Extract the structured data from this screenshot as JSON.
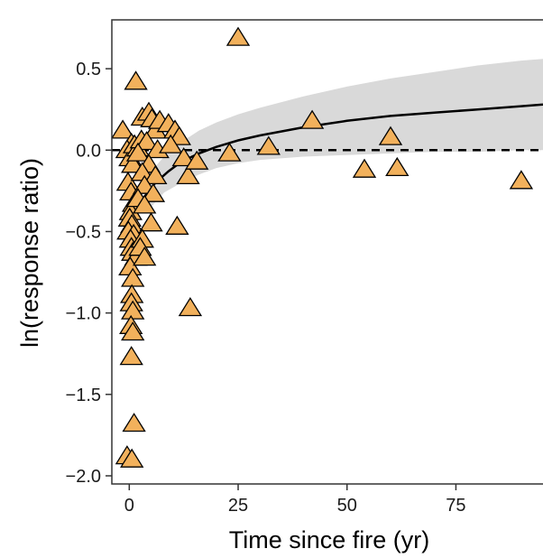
{
  "chart_data": {
    "type": "scatter",
    "title": "",
    "xlabel": "Time since fire (yr)",
    "ylabel": "ln(response ratio)",
    "xlim": [
      -4,
      95
    ],
    "ylim": [
      -2.05,
      0.8
    ],
    "x_ticks": [
      0,
      25,
      50,
      75
    ],
    "x_tick_labels": [
      "0",
      "25",
      "50",
      "75"
    ],
    "y_ticks": [
      0.5,
      0.0,
      -0.5,
      -1.0,
      -1.5,
      -2.0
    ],
    "y_tick_labels": [
      "0.5",
      "0.0",
      "−0.5",
      "−1.0",
      "−1.5",
      "−2.0"
    ],
    "grid": false,
    "reference_line": {
      "y": 0,
      "style": "dashed"
    },
    "series": [
      {
        "type": "scatter",
        "marker": "triangle",
        "points": [
          {
            "x": -1.5,
            "y": 0.12
          },
          {
            "x": 0.5,
            "y": 0.04
          },
          {
            "x": -0.5,
            "y": 0.0
          },
          {
            "x": 0.2,
            "y": -0.05
          },
          {
            "x": 1.2,
            "y": 0.03
          },
          {
            "x": 2.0,
            "y": 0.01
          },
          {
            "x": 0.8,
            "y": -0.09
          },
          {
            "x": -0.3,
            "y": -0.2
          },
          {
            "x": 0.4,
            "y": -0.26
          },
          {
            "x": 1.0,
            "y": -0.33
          },
          {
            "x": 0.3,
            "y": -0.38
          },
          {
            "x": 0.1,
            "y": -0.42
          },
          {
            "x": 0.6,
            "y": -0.46
          },
          {
            "x": -0.2,
            "y": -0.5
          },
          {
            "x": 1.0,
            "y": -0.52
          },
          {
            "x": 0.3,
            "y": -0.55
          },
          {
            "x": 0.5,
            "y": -0.6
          },
          {
            "x": 0.8,
            "y": -0.63
          },
          {
            "x": 1.5,
            "y": -0.66
          },
          {
            "x": 0.2,
            "y": -0.72
          },
          {
            "x": 0.8,
            "y": -0.79
          },
          {
            "x": 0.6,
            "y": -0.89
          },
          {
            "x": 0.5,
            "y": -0.94
          },
          {
            "x": 0.8,
            "y": -0.99
          },
          {
            "x": 0.4,
            "y": -1.08
          },
          {
            "x": 0.8,
            "y": -1.12
          },
          {
            "x": 0.5,
            "y": -1.27
          },
          {
            "x": 1.1,
            "y": -1.68
          },
          {
            "x": -0.5,
            "y": -1.88
          },
          {
            "x": 0.6,
            "y": -1.9
          },
          {
            "x": 1.5,
            "y": 0.42
          },
          {
            "x": 3.0,
            "y": 0.2
          },
          {
            "x": 4.5,
            "y": 0.23
          },
          {
            "x": 5.2,
            "y": 0.19
          },
          {
            "x": 6.0,
            "y": 0.12
          },
          {
            "x": 7.0,
            "y": 0.18
          },
          {
            "x": 9.0,
            "y": 0.16
          },
          {
            "x": 10.5,
            "y": 0.12
          },
          {
            "x": 11.5,
            "y": 0.08
          },
          {
            "x": 2.8,
            "y": 0.06
          },
          {
            "x": 4.0,
            "y": 0.05
          },
          {
            "x": 6.5,
            "y": 0.0
          },
          {
            "x": 9.5,
            "y": 0.03
          },
          {
            "x": 2.0,
            "y": -0.02
          },
          {
            "x": 4.5,
            "y": -0.09
          },
          {
            "x": 3.0,
            "y": -0.14
          },
          {
            "x": 6.0,
            "y": -0.16
          },
          {
            "x": 3.5,
            "y": -0.22
          },
          {
            "x": 5.5,
            "y": -0.27
          },
          {
            "x": 2.0,
            "y": -0.3
          },
          {
            "x": 3.5,
            "y": -0.34
          },
          {
            "x": 5.0,
            "y": -0.45
          },
          {
            "x": 3.0,
            "y": -0.55
          },
          {
            "x": 2.5,
            "y": -0.6
          },
          {
            "x": 3.5,
            "y": -0.66
          },
          {
            "x": 12.5,
            "y": -0.05
          },
          {
            "x": 13.5,
            "y": -0.16
          },
          {
            "x": 15.5,
            "y": -0.07
          },
          {
            "x": 11.0,
            "y": -0.47
          },
          {
            "x": 14.0,
            "y": -0.97
          },
          {
            "x": 23.0,
            "y": -0.02
          },
          {
            "x": 25.0,
            "y": 0.69
          },
          {
            "x": 32.0,
            "y": 0.02
          },
          {
            "x": 42.0,
            "y": 0.18
          },
          {
            "x": 54.0,
            "y": -0.12
          },
          {
            "x": 60.0,
            "y": 0.08
          },
          {
            "x": 61.5,
            "y": -0.11
          },
          {
            "x": 90.0,
            "y": -0.19
          }
        ]
      },
      {
        "type": "line",
        "points": [
          {
            "x": 0,
            "y": -0.45
          },
          {
            "x": 1,
            "y": -0.4
          },
          {
            "x": 2,
            "y": -0.34
          },
          {
            "x": 4,
            "y": -0.27
          },
          {
            "x": 6,
            "y": -0.2
          },
          {
            "x": 9,
            "y": -0.13
          },
          {
            "x": 12,
            "y": -0.07
          },
          {
            "x": 16,
            "y": -0.02
          },
          {
            "x": 20,
            "y": 0.02
          },
          {
            "x": 25,
            "y": 0.06
          },
          {
            "x": 30,
            "y": 0.09
          },
          {
            "x": 40,
            "y": 0.14
          },
          {
            "x": 50,
            "y": 0.18
          },
          {
            "x": 60,
            "y": 0.21
          },
          {
            "x": 70,
            "y": 0.23
          },
          {
            "x": 80,
            "y": 0.25
          },
          {
            "x": 90,
            "y": 0.27
          },
          {
            "x": 95,
            "y": 0.28
          }
        ]
      },
      {
        "type": "band",
        "upper": [
          {
            "x": 4,
            "y": -0.18
          },
          {
            "x": 6,
            "y": -0.1
          },
          {
            "x": 8,
            "y": -0.04
          },
          {
            "x": 12,
            "y": 0.05
          },
          {
            "x": 16,
            "y": 0.12
          },
          {
            "x": 20,
            "y": 0.17
          },
          {
            "x": 25,
            "y": 0.22
          },
          {
            "x": 30,
            "y": 0.26
          },
          {
            "x": 40,
            "y": 0.33
          },
          {
            "x": 50,
            "y": 0.39
          },
          {
            "x": 60,
            "y": 0.44
          },
          {
            "x": 70,
            "y": 0.48
          },
          {
            "x": 80,
            "y": 0.52
          },
          {
            "x": 90,
            "y": 0.55
          },
          {
            "x": 95,
            "y": 0.56
          }
        ],
        "lower": [
          {
            "x": 4,
            "y": -0.38
          },
          {
            "x": 6,
            "y": -0.32
          },
          {
            "x": 8,
            "y": -0.26
          },
          {
            "x": 12,
            "y": -0.2
          },
          {
            "x": 16,
            "y": -0.15
          },
          {
            "x": 20,
            "y": -0.11
          },
          {
            "x": 25,
            "y": -0.08
          },
          {
            "x": 30,
            "y": -0.06
          },
          {
            "x": 40,
            "y": -0.04
          },
          {
            "x": 50,
            "y": -0.03
          },
          {
            "x": 60,
            "y": -0.02
          },
          {
            "x": 70,
            "y": -0.01
          },
          {
            "x": 80,
            "y": -0.01
          },
          {
            "x": 90,
            "y": 0.0
          },
          {
            "x": 95,
            "y": 0.0
          }
        ]
      }
    ],
    "colors": {
      "marker_fill": "#f2b15c",
      "marker_stroke": "#000000",
      "band_fill": "#d9d9d9",
      "line": "#000000",
      "panel_border": "#333333"
    }
  }
}
